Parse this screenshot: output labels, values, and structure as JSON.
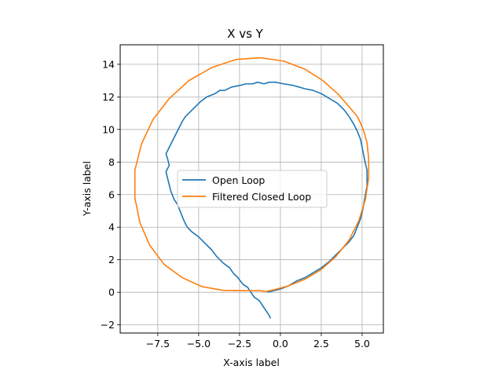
{
  "chart_data": {
    "type": "line",
    "title": "X vs Y",
    "xlabel": "X-axis label",
    "ylabel": "Y-axis label",
    "xlim": [
      -9.8,
      6.3
    ],
    "ylim": [
      -2.5,
      15.2
    ],
    "xticks": [
      -7.5,
      -5.0,
      -2.5,
      0.0,
      2.5,
      5.0
    ],
    "xtick_labels": [
      "−7.5",
      "−5.0",
      "−2.5",
      "0.0",
      "2.5",
      "5.0"
    ],
    "yticks": [
      -2,
      0,
      2,
      4,
      6,
      8,
      10,
      12,
      14
    ],
    "ytick_labels": [
      "−2",
      "0",
      "2",
      "4",
      "6",
      "8",
      "10",
      "12",
      "14"
    ],
    "grid": true,
    "legend_position": "center",
    "series": [
      {
        "name": "Open Loop",
        "color": "#1f77b4",
        "points": [
          [
            -0.6,
            -1.6
          ],
          [
            -0.7,
            -1.4
          ],
          [
            -0.9,
            -1.1
          ],
          [
            -1.1,
            -0.8
          ],
          [
            -1.3,
            -0.5
          ],
          [
            -1.6,
            -0.3
          ],
          [
            -1.8,
            0.0
          ],
          [
            -2.0,
            0.3
          ],
          [
            -2.3,
            0.5
          ],
          [
            -2.6,
            0.9
          ],
          [
            -2.9,
            1.2
          ],
          [
            -3.1,
            1.5
          ],
          [
            -3.5,
            1.8
          ],
          [
            -3.9,
            2.2
          ],
          [
            -4.2,
            2.6
          ],
          [
            -4.6,
            3.0
          ],
          [
            -5.0,
            3.4
          ],
          [
            -5.4,
            3.7
          ],
          [
            -5.7,
            4.0
          ],
          [
            -5.9,
            4.4
          ],
          [
            -6.1,
            4.9
          ],
          [
            -6.3,
            5.4
          ],
          [
            -6.5,
            5.7
          ],
          [
            -6.7,
            6.2
          ],
          [
            -6.8,
            6.6
          ],
          [
            -6.9,
            7.0
          ],
          [
            -7.0,
            7.4
          ],
          [
            -6.8,
            7.8
          ],
          [
            -6.9,
            8.2
          ],
          [
            -7.0,
            8.5
          ],
          [
            -6.8,
            8.9
          ],
          [
            -6.6,
            9.3
          ],
          [
            -6.4,
            9.7
          ],
          [
            -6.2,
            10.1
          ],
          [
            -6.0,
            10.5
          ],
          [
            -5.8,
            10.8
          ],
          [
            -5.5,
            11.1
          ],
          [
            -5.2,
            11.4
          ],
          [
            -4.9,
            11.7
          ],
          [
            -4.5,
            12.0
          ],
          [
            -4.0,
            12.2
          ],
          [
            -3.7,
            12.4
          ],
          [
            -3.4,
            12.4
          ],
          [
            -3.0,
            12.6
          ],
          [
            -2.5,
            12.7
          ],
          [
            -2.1,
            12.8
          ],
          [
            -1.7,
            12.8
          ],
          [
            -1.4,
            12.9
          ],
          [
            -1.0,
            12.8
          ],
          [
            -0.7,
            12.9
          ],
          [
            -0.3,
            12.9
          ],
          [
            0.2,
            12.8
          ],
          [
            0.8,
            12.7
          ],
          [
            1.5,
            12.5
          ],
          [
            2.0,
            12.4
          ],
          [
            2.5,
            12.2
          ],
          [
            3.0,
            11.9
          ],
          [
            3.5,
            11.6
          ],
          [
            3.9,
            11.2
          ],
          [
            4.2,
            10.8
          ],
          [
            4.5,
            10.3
          ],
          [
            4.7,
            9.9
          ],
          [
            4.9,
            9.4
          ],
          [
            5.0,
            8.9
          ],
          [
            5.1,
            8.4
          ],
          [
            5.2,
            7.9
          ],
          [
            5.3,
            7.5
          ],
          [
            5.3,
            7.0
          ],
          [
            5.3,
            6.5
          ],
          [
            5.2,
            6.0
          ],
          [
            5.1,
            5.4
          ],
          [
            5.0,
            4.9
          ],
          [
            4.9,
            4.5
          ],
          [
            4.7,
            4.0
          ],
          [
            4.5,
            3.5
          ],
          [
            4.2,
            3.1
          ],
          [
            3.8,
            2.7
          ],
          [
            3.4,
            2.3
          ],
          [
            3.0,
            1.9
          ],
          [
            2.5,
            1.5
          ],
          [
            2.0,
            1.2
          ],
          [
            1.5,
            0.9
          ],
          [
            1.0,
            0.7
          ],
          [
            0.5,
            0.4
          ],
          [
            0.0,
            0.2
          ],
          [
            -0.4,
            0.1
          ],
          [
            -0.8,
            0.0
          ]
        ]
      },
      {
        "name": "Filtered Closed Loop",
        "color": "#ff7f0e",
        "points": [
          [
            -0.9,
            0.05
          ],
          [
            -0.4,
            0.15
          ],
          [
            0.5,
            0.4
          ],
          [
            1.5,
            0.8
          ],
          [
            2.5,
            1.4
          ],
          [
            3.4,
            2.2
          ],
          [
            4.2,
            3.2
          ],
          [
            4.8,
            4.4
          ],
          [
            5.2,
            5.7
          ],
          [
            5.4,
            7.0
          ],
          [
            5.4,
            8.2
          ],
          [
            5.3,
            9.2
          ],
          [
            5.1,
            9.9
          ],
          [
            4.9,
            10.4
          ],
          [
            4.7,
            10.8
          ],
          [
            4.2,
            11.4
          ],
          [
            3.5,
            12.2
          ],
          [
            2.6,
            13.0
          ],
          [
            1.5,
            13.7
          ],
          [
            0.2,
            14.2
          ],
          [
            -1.2,
            14.4
          ],
          [
            -2.7,
            14.3
          ],
          [
            -4.2,
            13.8
          ],
          [
            -5.6,
            13.0
          ],
          [
            -6.8,
            11.9
          ],
          [
            -7.8,
            10.6
          ],
          [
            -8.5,
            9.1
          ],
          [
            -8.9,
            7.5
          ],
          [
            -8.9,
            5.8
          ],
          [
            -8.6,
            4.3
          ],
          [
            -8.0,
            2.9
          ],
          [
            -7.1,
            1.7
          ],
          [
            -6.0,
            0.9
          ],
          [
            -4.8,
            0.35
          ],
          [
            -3.5,
            0.12
          ],
          [
            -2.2,
            0.1
          ],
          [
            -1.2,
            0.1
          ],
          [
            -0.9,
            0.05
          ]
        ]
      }
    ]
  }
}
